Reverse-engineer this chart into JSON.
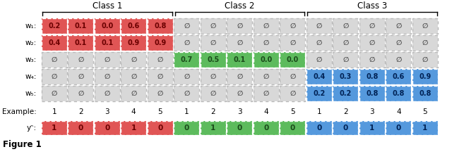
{
  "class_labels": [
    "Class 1",
    "Class 2",
    "Class 3"
  ],
  "row_labels": [
    "w₁:",
    "w₂:",
    "w₃:",
    "w₄:",
    "w₅:"
  ],
  "example_labels": [
    "1",
    "2",
    "3",
    "4",
    "5",
    "1",
    "2",
    "3",
    "4",
    "5",
    "1",
    "2",
    "3",
    "4",
    "5"
  ],
  "yt_label": "yᵔ:",
  "cell_values": [
    [
      "0.2",
      "0.1",
      "0.0",
      "0.6",
      "0.8",
      "∅",
      "∅",
      "∅",
      "∅",
      "∅",
      "∅",
      "∅",
      "∅",
      "∅",
      "∅"
    ],
    [
      "0.4",
      "0.1",
      "0.1",
      "0.9",
      "0.9",
      "∅",
      "∅",
      "∅",
      "∅",
      "∅",
      "∅",
      "∅",
      "∅",
      "∅",
      "∅"
    ],
    [
      "∅",
      "∅",
      "∅",
      "∅",
      "∅",
      "0.7",
      "0.5",
      "0.1",
      "0.0",
      "0.0",
      "∅",
      "∅",
      "∅",
      "∅",
      "∅"
    ],
    [
      "∅",
      "∅",
      "∅",
      "∅",
      "∅",
      "∅",
      "∅",
      "∅",
      "∅",
      "∅",
      "0.4",
      "0.3",
      "0.8",
      "0.6",
      "0.9"
    ],
    [
      "∅",
      "∅",
      "∅",
      "∅",
      "∅",
      "∅",
      "∅",
      "∅",
      "∅",
      "∅",
      "0.2",
      "0.2",
      "0.8",
      "0.8",
      "0.8"
    ]
  ],
  "cell_colors": [
    [
      "red",
      "red",
      "red",
      "red",
      "red",
      "gray",
      "gray",
      "gray",
      "gray",
      "gray",
      "gray",
      "gray",
      "gray",
      "gray",
      "gray"
    ],
    [
      "red",
      "red",
      "red",
      "red",
      "red",
      "gray",
      "gray",
      "gray",
      "gray",
      "gray",
      "gray",
      "gray",
      "gray",
      "gray",
      "gray"
    ],
    [
      "gray",
      "gray",
      "gray",
      "gray",
      "gray",
      "green",
      "green",
      "green",
      "green",
      "green",
      "gray",
      "gray",
      "gray",
      "gray",
      "gray"
    ],
    [
      "gray",
      "gray",
      "gray",
      "gray",
      "gray",
      "gray",
      "gray",
      "gray",
      "gray",
      "gray",
      "blue",
      "blue",
      "blue",
      "blue",
      "blue"
    ],
    [
      "gray",
      "gray",
      "gray",
      "gray",
      "gray",
      "gray",
      "gray",
      "gray",
      "gray",
      "gray",
      "blue",
      "blue",
      "blue",
      "blue",
      "blue"
    ]
  ],
  "yt_values": [
    "1",
    "0",
    "0",
    "1",
    "0",
    "0",
    "1",
    "0",
    "0",
    "0",
    "0",
    "0",
    "1",
    "0",
    "1"
  ],
  "yt_colors": [
    "red",
    "red",
    "red",
    "red",
    "red",
    "green",
    "green",
    "green",
    "green",
    "green",
    "blue",
    "blue",
    "blue",
    "blue",
    "blue"
  ],
  "color_map": {
    "red": "#E05555",
    "green": "#5DBB5D",
    "blue": "#5599DD",
    "gray": "#D8D8D8"
  },
  "text_color_map": {
    "red": "#6B0000",
    "green": "#1A4A1A",
    "blue": "#002255",
    "gray": "#555555"
  },
  "n_rows": 5,
  "n_cols": 15,
  "figsize": [
    6.4,
    2.36
  ],
  "dpi": 100
}
